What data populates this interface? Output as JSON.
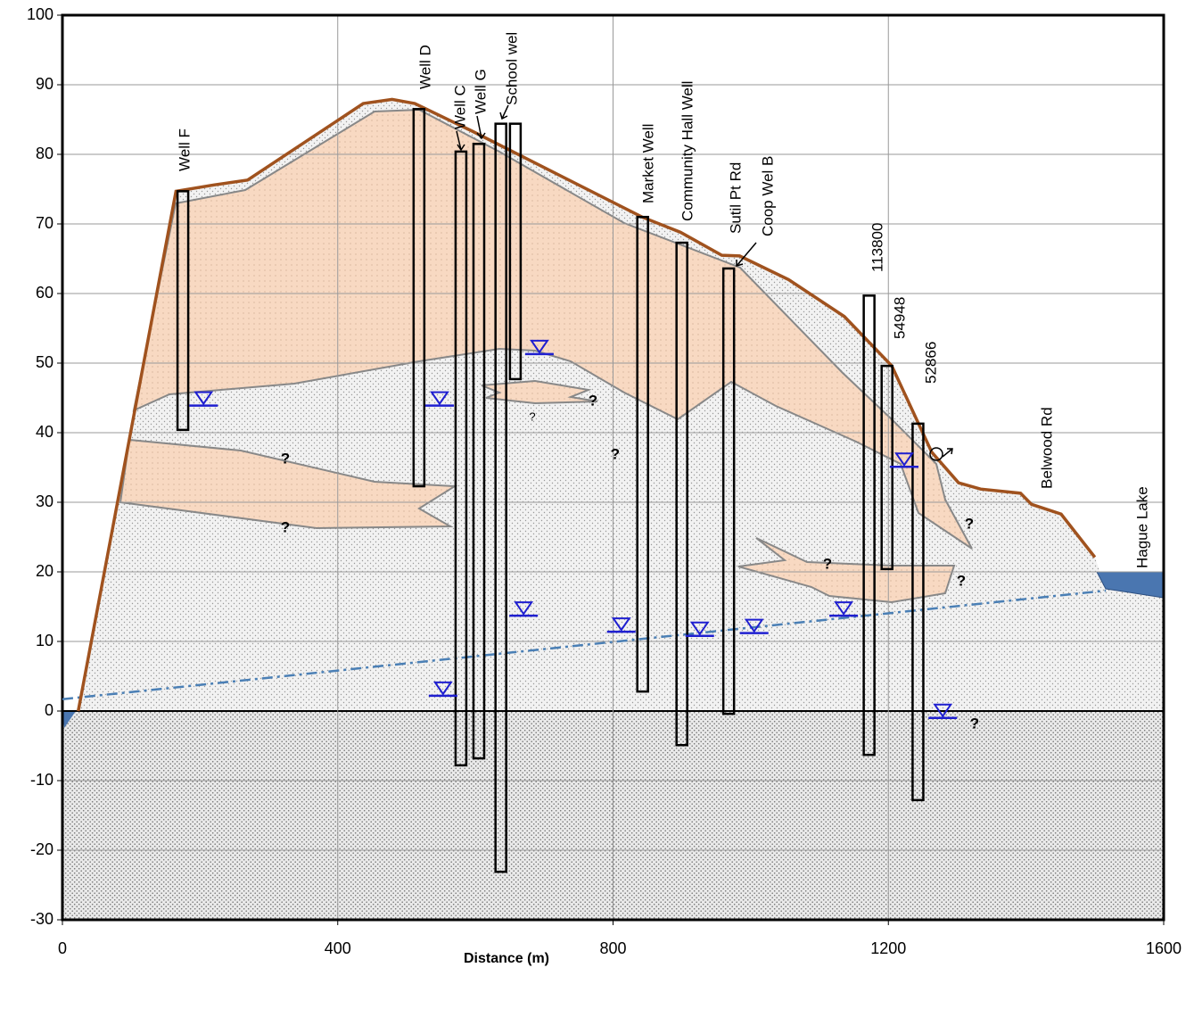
{
  "chart_data": {
    "type": "cross-section",
    "x_label": "Distance (m)",
    "xlim": [
      0,
      1600
    ],
    "xticks": [
      0,
      400,
      800,
      1200,
      1600
    ],
    "ylim": [
      -30,
      100
    ],
    "yticks": [
      -30,
      -20,
      -10,
      0,
      10,
      20,
      30,
      40,
      50,
      60,
      70,
      80,
      90,
      100
    ],
    "grid": true,
    "ground": {
      "color": "#a0521e",
      "x": [
        23,
        165,
        220,
        269,
        437,
        479,
        512,
        596,
        842,
        898,
        958,
        984,
        1055,
        1136,
        1205,
        1263,
        1302,
        1334,
        1392,
        1408,
        1451,
        1500
      ],
      "values": [
        0,
        74.7,
        75.6,
        76.3,
        87.3,
        87.9,
        87.3,
        83.3,
        71,
        68.8,
        65.5,
        65.4,
        62,
        56.7,
        49.6,
        37.2,
        32.8,
        31.9,
        31.3,
        29.7,
        28.3,
        22.1
      ]
    },
    "water_table": {
      "color": "#4a7fb5",
      "x": [
        0,
        1516
      ],
      "values": [
        1.7,
        17.3
      ]
    },
    "wells": [
      {
        "name": "Well F",
        "x": 175,
        "top": 74.7,
        "bottom": 40.4
      },
      {
        "name": "Well D",
        "x": 518,
        "top": 86.5,
        "bottom": 32.3
      },
      {
        "name": "Well C",
        "x": 579,
        "top": 80.4,
        "bottom": -7.8
      },
      {
        "name": "Well G",
        "x": 605,
        "top": 81.5,
        "bottom": -6.8
      },
      {
        "name": "School wel",
        "x": 637,
        "top": 84.4,
        "bottom": -23.1
      },
      {
        "x": 658,
        "top": 84.4,
        "bottom": 47.7
      },
      {
        "name": "Market Well",
        "x": 843,
        "top": 71,
        "bottom": 2.8
      },
      {
        "name": "Community Hall Well",
        "x": 900,
        "top": 67.3,
        "bottom": -4.9
      },
      {
        "name": "Sutil Pt Rd",
        "x": 968,
        "top": 63.6,
        "bottom": -0.4
      },
      {
        "name": "113800",
        "x": 1172,
        "top": 59.7,
        "bottom": -6.3
      },
      {
        "name": "54948",
        "x": 1198,
        "top": 49.6,
        "bottom": 20.4
      },
      {
        "name": "52866",
        "x": 1243,
        "top": 41.3,
        "bottom": -12.8
      }
    ],
    "labels": [
      "Coop Wel B",
      "Belwood Rd",
      "Hague Lake"
    ],
    "water_levels": {
      "color": "#1f1fd0",
      "x": [
        205,
        548,
        553,
        670,
        693,
        812,
        926,
        1005,
        1135,
        1223,
        1279
      ],
      "values": [
        43.9,
        43.9,
        2.2,
        13.7,
        51.3,
        11.4,
        10.8,
        11.2,
        13.7,
        35.1,
        -1.0
      ]
    },
    "question_marks": [
      "?",
      "?",
      "?",
      "?",
      "?",
      "?",
      "?",
      "?",
      "?"
    ]
  }
}
